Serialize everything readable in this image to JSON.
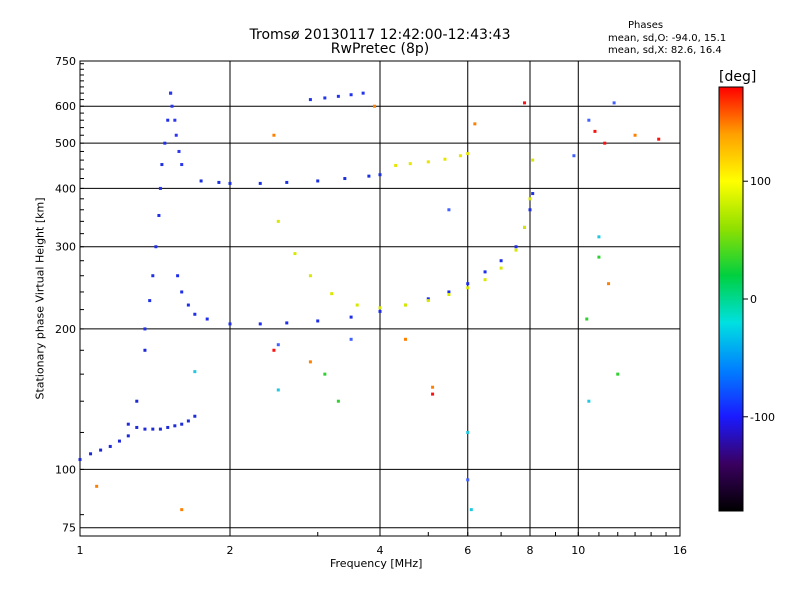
{
  "chart_data": {
    "type": "scatter",
    "title": "Tromsø 20130117 12:42:00-12:43:43",
    "subtitle": "RwPretec (8p)",
    "xlabel": "Frequency [MHz]",
    "ylabel": "Stationary phase Virtual Height [km]",
    "x_scale": "log",
    "y_scale": "log",
    "xlim": [
      1,
      16
    ],
    "ylim": [
      72,
      750
    ],
    "x_ticks": [
      1,
      2,
      4,
      6,
      8,
      10,
      16
    ],
    "x_tick_labels": [
      "1",
      "2",
      "4",
      "6",
      "8",
      "10",
      "16"
    ],
    "y_ticks": [
      75,
      100,
      200,
      300,
      400,
      500,
      600,
      750
    ],
    "y_tick_labels": [
      "75",
      "100",
      "200",
      "300",
      "400",
      "500",
      "600",
      "750"
    ],
    "grid": true,
    "info": {
      "header": "Phases",
      "line1": "mean, sd,O: -94.0, 15.1",
      "line2": "mean, sd,X:  82.6, 16.4"
    },
    "colorbar": {
      "label": "[deg]",
      "range": [
        -180,
        180
      ],
      "ticks": [
        100,
        0,
        -100
      ],
      "tick_labels": [
        "100",
        "0",
        "-100"
      ],
      "colors": [
        "#000000",
        "#3a0060",
        "#1a1aff",
        "#0080ff",
        "#00e0e0",
        "#00d040",
        "#90e000",
        "#ffff00",
        "#ffa000",
        "#ff0000"
      ]
    },
    "series": [
      {
        "phase": -94,
        "color": "#1e2ee8",
        "x": [
          1.57,
          1.6,
          1.65,
          1.7,
          1.8,
          2.0,
          2.3,
          2.6,
          3.0,
          3.5,
          4.0,
          4.5,
          5.0,
          5.5,
          6.0,
          6.5,
          7.0,
          7.5,
          7.8,
          8.0,
          8.1
        ],
        "y": [
          260,
          240,
          225,
          215,
          210,
          205,
          205,
          206,
          208,
          212,
          218,
          225,
          232,
          240,
          250,
          265,
          280,
          300,
          330,
          360,
          390
        ]
      },
      {
        "phase": -95,
        "color": "#1a30e0",
        "x": [
          1.75,
          1.9,
          2.0,
          2.3,
          2.6,
          3.0,
          3.4,
          3.8,
          4.0
        ],
        "y": [
          415,
          412,
          410,
          410,
          412,
          415,
          420,
          425,
          428
        ]
      },
      {
        "phase": -92,
        "color": "#2233ee",
        "x": [
          2.9,
          3.1,
          3.3,
          3.5,
          3.7
        ],
        "y": [
          620,
          625,
          630,
          635,
          640
        ]
      },
      {
        "phase": -97,
        "color": "#1d2bd8",
        "x": [
          1.25,
          1.3,
          1.35,
          1.4,
          1.45,
          1.5,
          1.55,
          1.6,
          1.65,
          1.7
        ],
        "y": [
          125,
          123,
          122,
          122,
          122,
          123,
          124,
          125,
          127,
          130
        ]
      },
      {
        "phase": -96,
        "color": "#2030e6",
        "x": [
          1.35,
          1.38,
          1.4,
          1.42,
          1.44,
          1.45,
          1.46,
          1.48,
          1.5,
          1.52
        ],
        "y": [
          200,
          230,
          260,
          300,
          350,
          400,
          450,
          500,
          560,
          640
        ]
      },
      {
        "phase": -93,
        "color": "#2a36f0",
        "x": [
          1.52,
          1.53,
          1.55,
          1.56,
          1.58,
          1.6
        ],
        "y": [
          640,
          600,
          560,
          520,
          480,
          450
        ]
      },
      {
        "phase": -98,
        "color": "#1c28d4",
        "x": [
          1.0,
          1.05,
          1.1,
          1.15,
          1.2,
          1.25,
          1.3,
          1.35
        ],
        "y": [
          105,
          108,
          110,
          112,
          115,
          118,
          140,
          180
        ]
      },
      {
        "phase": 85,
        "color": "#d8e800",
        "x": [
          2.5,
          2.7,
          2.9,
          3.2,
          3.6,
          4.0,
          4.5,
          5.0,
          5.5,
          6.0,
          6.5,
          7.0,
          7.5,
          7.8,
          8.0,
          8.1
        ],
        "y": [
          340,
          290,
          260,
          238,
          225,
          222,
          225,
          230,
          237,
          245,
          255,
          270,
          295,
          330,
          380,
          460
        ]
      },
      {
        "phase": 80,
        "color": "#e6e600",
        "x": [
          4.3,
          4.6,
          5.0,
          5.4,
          5.8,
          6.0
        ],
        "y": [
          448,
          452,
          456,
          462,
          470,
          475
        ]
      },
      {
        "phase": 120,
        "color": "#ff8000",
        "x": [
          1.08,
          1.6,
          2.45,
          2.9,
          3.9,
          4.5,
          5.1,
          6.2,
          11.5,
          13.0
        ],
        "y": [
          92,
          82,
          520,
          170,
          600,
          190,
          150,
          550,
          250,
          520
        ]
      },
      {
        "phase": 20,
        "color": "#30d030",
        "x": [
          3.1,
          3.3,
          10.4,
          11.0,
          12.0
        ],
        "y": [
          160,
          140,
          210,
          285,
          160
        ]
      },
      {
        "phase": -30,
        "color": "#20c8e0",
        "x": [
          1.7,
          2.5,
          6.0,
          6.1,
          10.5,
          11.0
        ],
        "y": [
          162,
          148,
          120,
          82,
          140,
          315
        ]
      },
      {
        "phase": 175,
        "color": "#ff1010",
        "x": [
          2.45,
          5.1,
          7.8,
          10.8,
          11.3,
          14.5
        ],
        "y": [
          180,
          145,
          610,
          530,
          500,
          510
        ]
      },
      {
        "phase": -60,
        "color": "#4060ff",
        "x": [
          2.5,
          3.5,
          5.5,
          6.0,
          9.8,
          10.5,
          11.8
        ],
        "y": [
          185,
          190,
          360,
          95,
          470,
          560,
          610
        ]
      }
    ]
  }
}
